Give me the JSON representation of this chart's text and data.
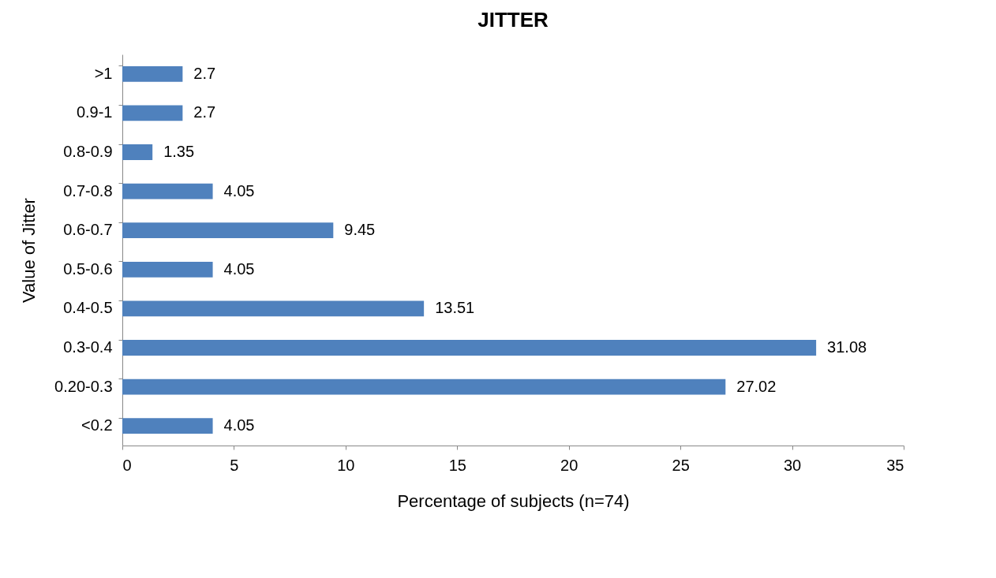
{
  "chart_data": {
    "type": "bar",
    "orientation": "horizontal",
    "title": "JITTER",
    "xlabel": "Percentage of subjects (n=74)",
    "ylabel": "Value of Jitter",
    "categories": [
      ">1",
      "0.9-1",
      "0.8-0.9",
      "0.7-0.8",
      "0.6-0.7",
      "0.5-0.6",
      "0.4-0.5",
      "0.3-0.4",
      "0.20-0.3",
      "<0.2"
    ],
    "values": [
      2.7,
      2.7,
      1.35,
      4.05,
      9.45,
      4.05,
      13.51,
      31.08,
      27.02,
      4.05
    ],
    "color": "#4f81bd",
    "xlim": [
      0,
      35
    ],
    "xticks": [
      0,
      5,
      10,
      15,
      20,
      25,
      30,
      35
    ],
    "data_labels": true,
    "grid": false
  }
}
